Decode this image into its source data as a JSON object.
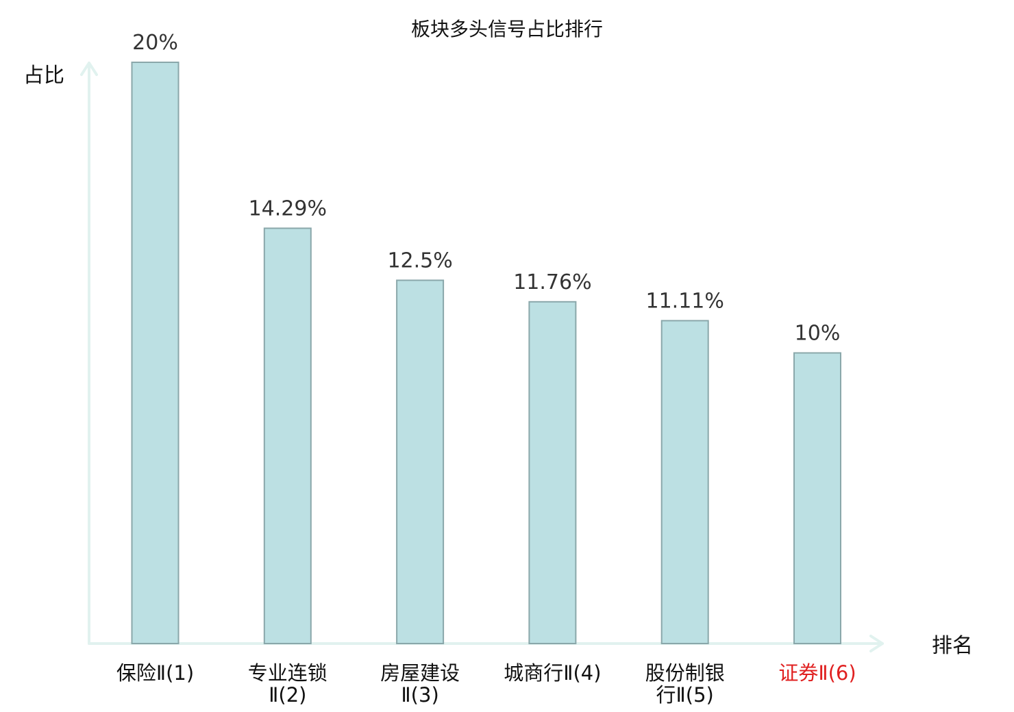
{
  "chart_data": {
    "type": "bar",
    "title": "板块多头信号占比排行",
    "ylabel": "占比",
    "xlabel": "排名",
    "ylim": [
      0,
      20
    ],
    "grid": false,
    "legend": "none",
    "categories": [
      [
        "保险Ⅱ(1)"
      ],
      [
        "专业连锁",
        "Ⅱ(2)"
      ],
      [
        "房屋建设",
        "Ⅱ(3)"
      ],
      [
        "城商行Ⅱ(4)"
      ],
      [
        "股份制银",
        "行Ⅱ(5)"
      ],
      [
        "证券Ⅱ(6)"
      ]
    ],
    "values": [
      20,
      14.29,
      12.5,
      11.76,
      11.11,
      10
    ],
    "value_labels": [
      "20%",
      "14.29%",
      "12.5%",
      "11.76%",
      "11.11%",
      "10%"
    ],
    "highlight_index": 5,
    "colors": {
      "bar_fill": "#bce0e3",
      "bar_stroke": "#8aa7aa",
      "axis": "#e1f2ef",
      "highlight_label": "#e02020",
      "label": "#111111",
      "value_label": "#333333"
    }
  }
}
